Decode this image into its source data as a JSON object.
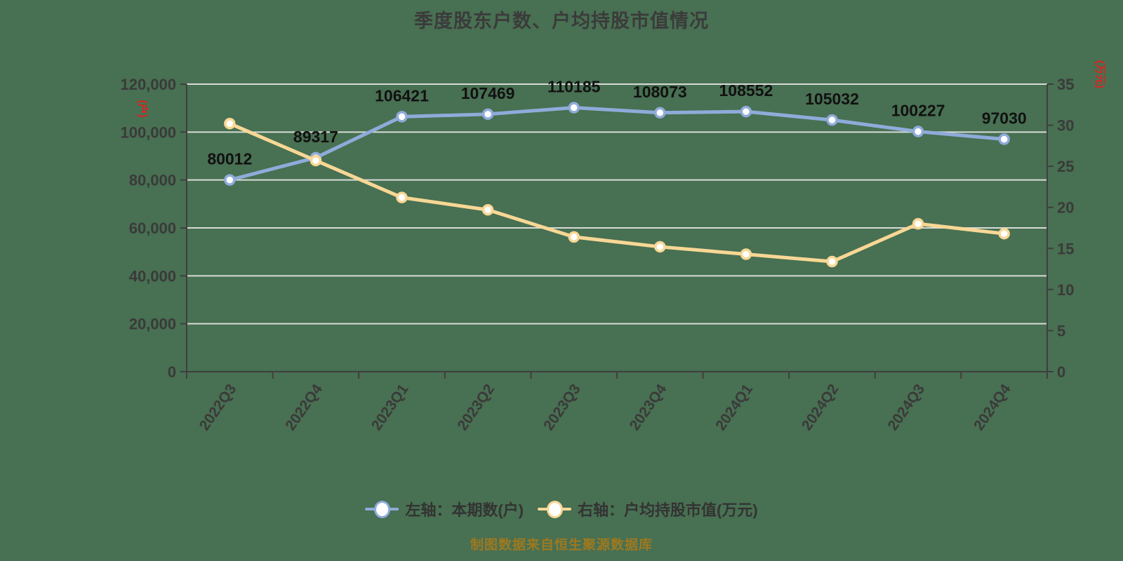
{
  "title": "季度股东户数、户均持股市值情况",
  "footer": "制图数据来自恒生聚源数据库",
  "colors": {
    "background": "#487052",
    "grid_line": "#D7DBD7",
    "axis_line": "#3F3F3F",
    "tick_text": "#3A3A3A",
    "title_text": "#3B3B3B",
    "data_label": "#111111",
    "series_blue": "#8FABDA",
    "series_yellow": "#F8D795",
    "marker_fill": "#FFFFFF",
    "axis_unit_red": "#E02020",
    "footer_text": "#9D7920",
    "legend_text": "#333333"
  },
  "axis_units": {
    "left": "(户)",
    "right": "(万元)"
  },
  "legend": {
    "items": [
      {
        "label": "左轴：本期数(户)",
        "color": "#8FABDA"
      },
      {
        "label": "右轴：户均持股市值(万元)",
        "color": "#F8D795"
      }
    ]
  },
  "chart_data": {
    "type": "line",
    "title": "季度股东户数、户均持股市值情况",
    "categories": [
      "2022Q3",
      "2022Q4",
      "2023Q1",
      "2023Q2",
      "2023Q3",
      "2023Q4",
      "2024Q1",
      "2024Q2",
      "2024Q3",
      "2024Q4"
    ],
    "series": [
      {
        "name": "左轴：本期数(户)",
        "yaxis": "left",
        "color": "#8FABDA",
        "values": [
          80012,
          89317,
          106421,
          107469,
          110185,
          108073,
          108552,
          105032,
          100227,
          97030
        ],
        "point_labels": [
          "80012",
          "89317",
          "106421",
          "107469",
          "110185",
          "108073",
          "108552",
          "105032",
          "100227",
          "97030"
        ]
      },
      {
        "name": "右轴：户均持股市值(万元)",
        "yaxis": "right",
        "color": "#F8D795",
        "values": [
          30.2,
          25.7,
          21.2,
          19.7,
          16.4,
          15.2,
          14.3,
          13.4,
          18.0,
          16.8
        ],
        "point_labels": []
      }
    ],
    "left_axis": {
      "unit": "(户)",
      "min": 0,
      "max": 120000,
      "step": 20000,
      "tick_labels": [
        "0",
        "20,000",
        "40,000",
        "60,000",
        "80,000",
        "100,000",
        "120,000"
      ]
    },
    "right_axis": {
      "unit": "(万元)",
      "min": 0,
      "max": 35,
      "step": 5,
      "tick_labels": [
        "0",
        "5",
        "10",
        "15",
        "20",
        "25",
        "30",
        "35"
      ]
    },
    "grid": true,
    "legend_position": "bottom"
  }
}
